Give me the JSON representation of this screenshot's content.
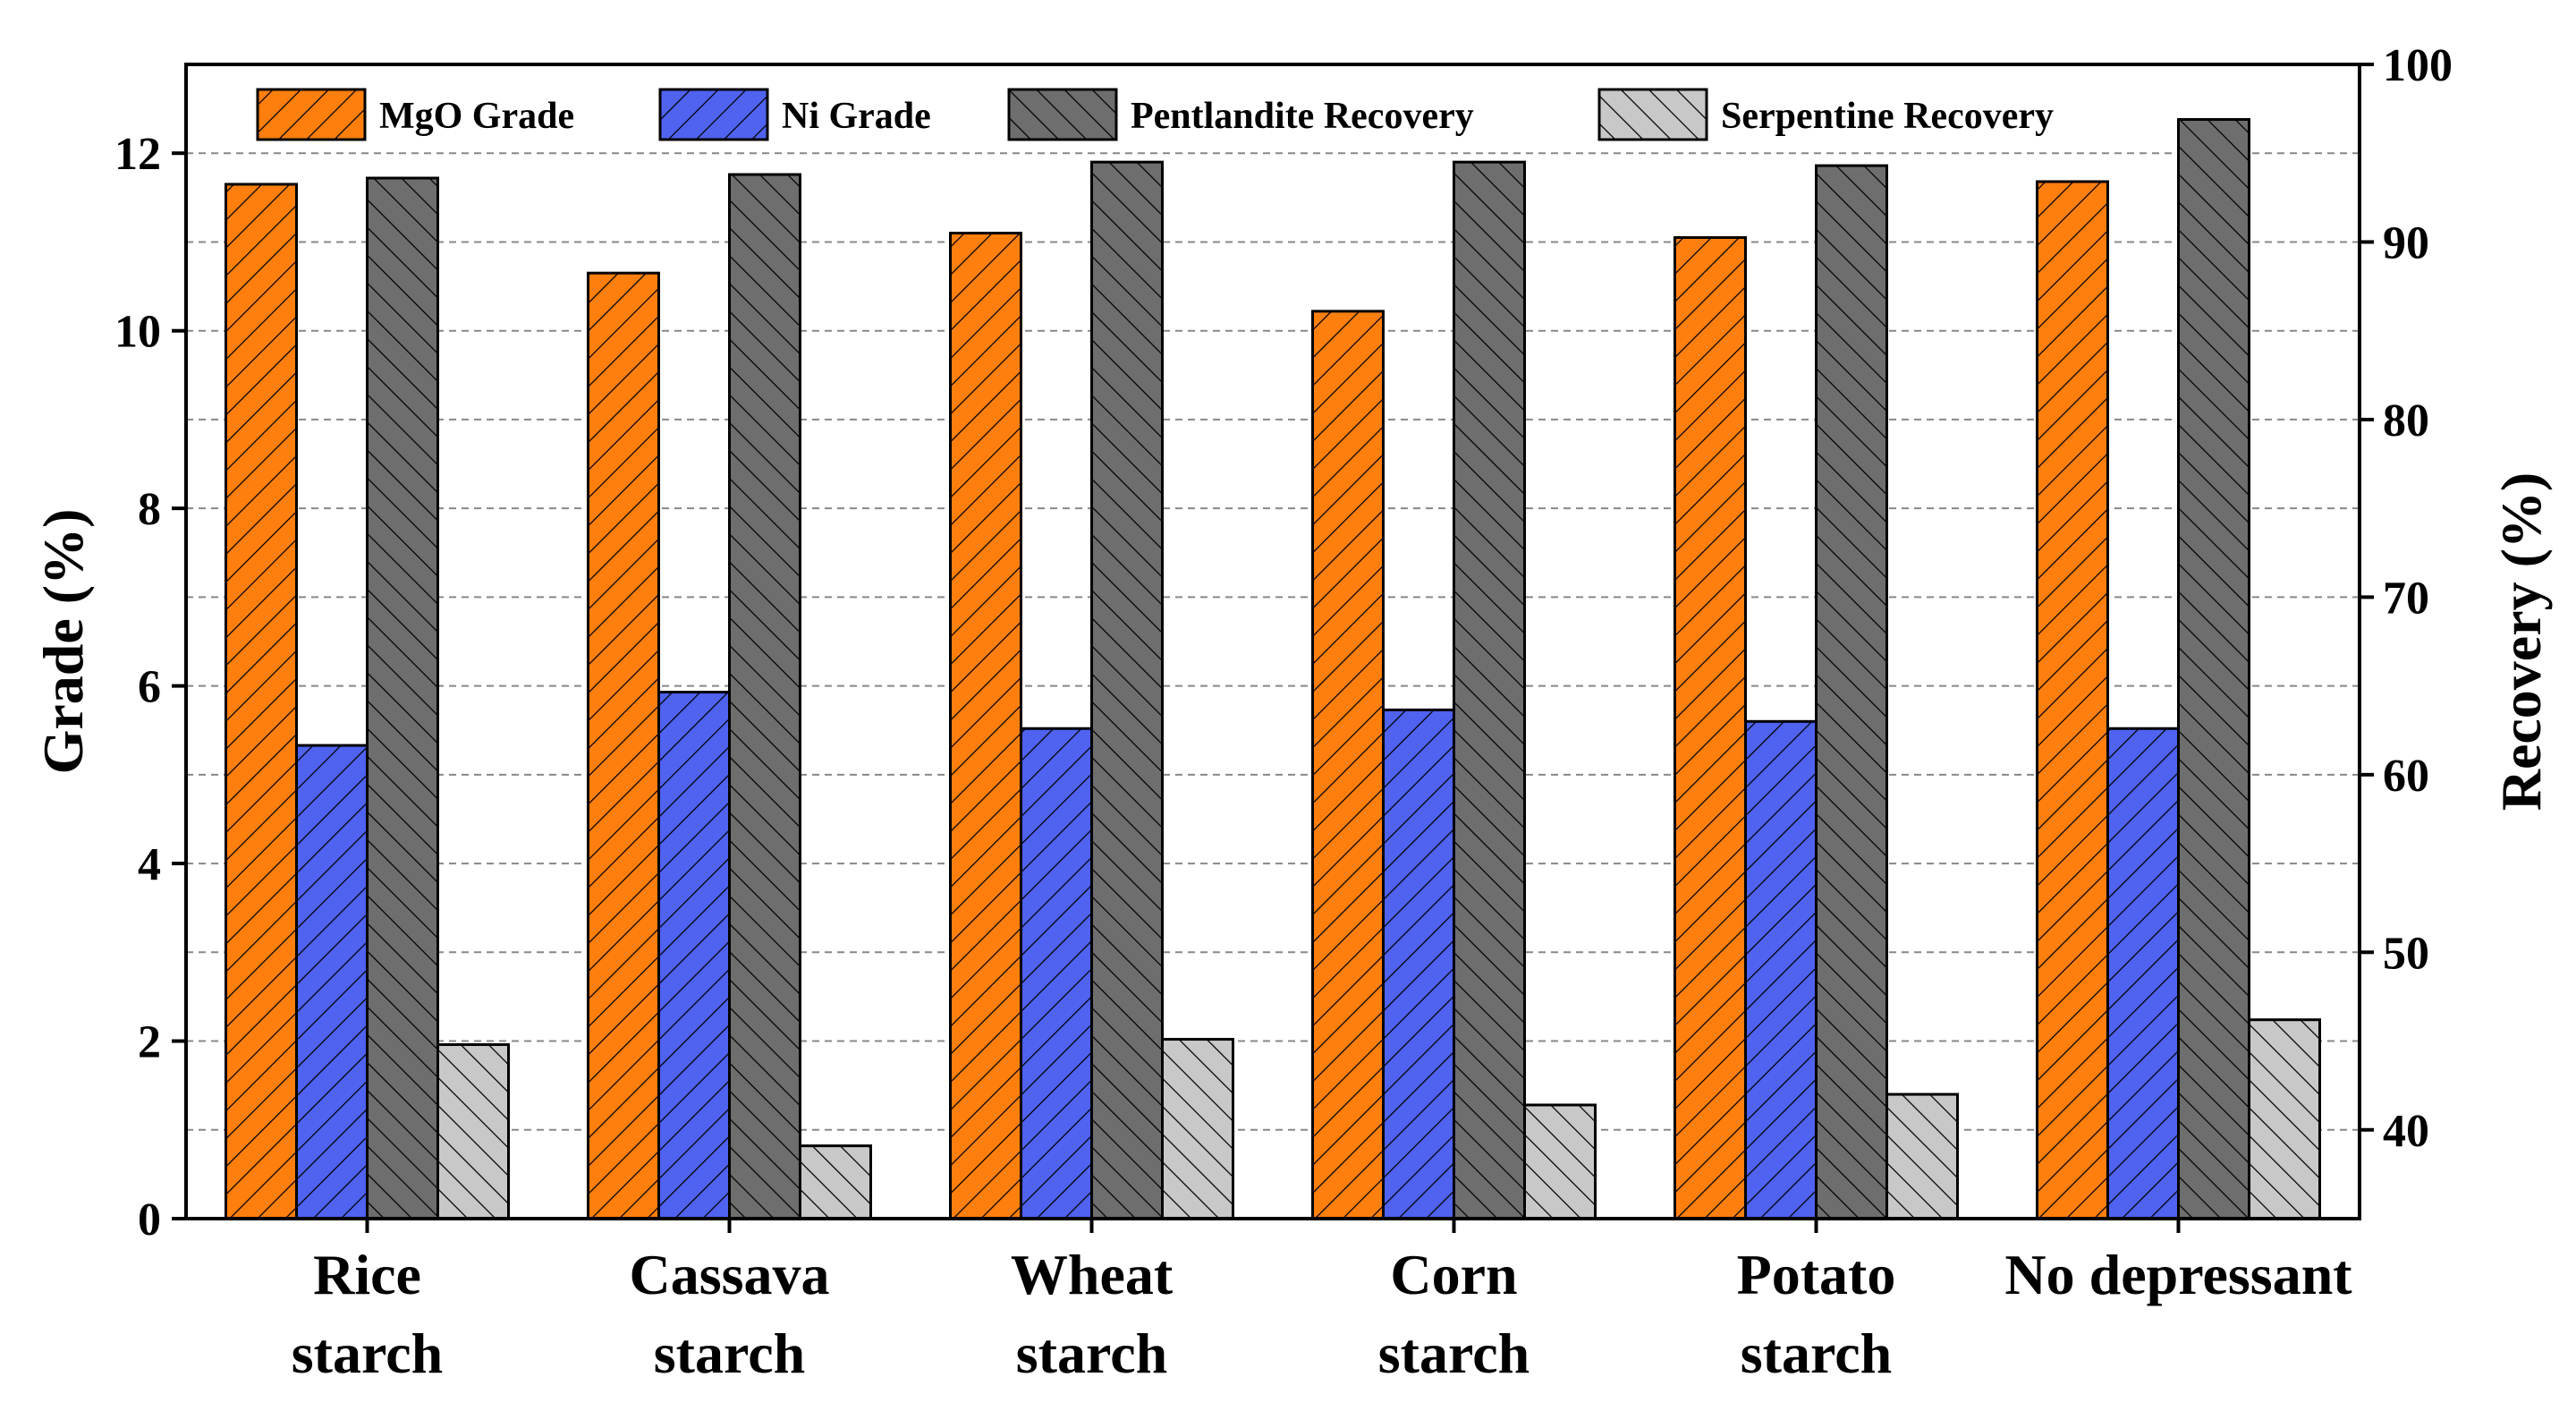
{
  "chart_data": {
    "type": "bar",
    "categories": [
      {
        "line1": "Rice",
        "line2": "starch"
      },
      {
        "line1": "Cassava",
        "line2": "starch"
      },
      {
        "line1": "Wheat",
        "line2": "starch"
      },
      {
        "line1": "Corn",
        "line2": "starch"
      },
      {
        "line1": "Potato",
        "line2": "starch"
      },
      {
        "line1": "No depressant",
        "line2": ""
      }
    ],
    "series": [
      {
        "name": "MgO Grade",
        "axis": "left",
        "color": "#ff7f0e",
        "hatch": "forward",
        "values": [
          11.65,
          10.65,
          11.1,
          10.22,
          11.05,
          11.68
        ]
      },
      {
        "name": "Ni Grade",
        "axis": "left",
        "color": "#4f62f0",
        "hatch": "forward",
        "values": [
          5.33,
          5.93,
          5.52,
          5.73,
          5.6,
          5.52
        ]
      },
      {
        "name": "Pentlandite Recovery",
        "axis": "right",
        "color": "#6e6e6e",
        "hatch": "back",
        "values": [
          93.6,
          93.8,
          94.5,
          94.5,
          94.3,
          96.9
        ]
      },
      {
        "name": "Serpentine Recovery",
        "axis": "right",
        "color": "#c8c8c8",
        "hatch": "back",
        "values": [
          44.8,
          39.1,
          45.1,
          41.4,
          42.0,
          46.2
        ]
      }
    ],
    "left_axis": {
      "label": "Grade (%)",
      "min": 0,
      "max": 13,
      "ticks": [
        "0",
        "2",
        "4",
        "6",
        "8",
        "10",
        "12"
      ]
    },
    "right_axis": {
      "label": "Recovery (%)",
      "min": 35,
      "max": 100,
      "ticks": [
        "40",
        "50",
        "60",
        "70",
        "80",
        "90",
        "100"
      ]
    },
    "grid": "dashed horizontal",
    "legend": "top"
  }
}
